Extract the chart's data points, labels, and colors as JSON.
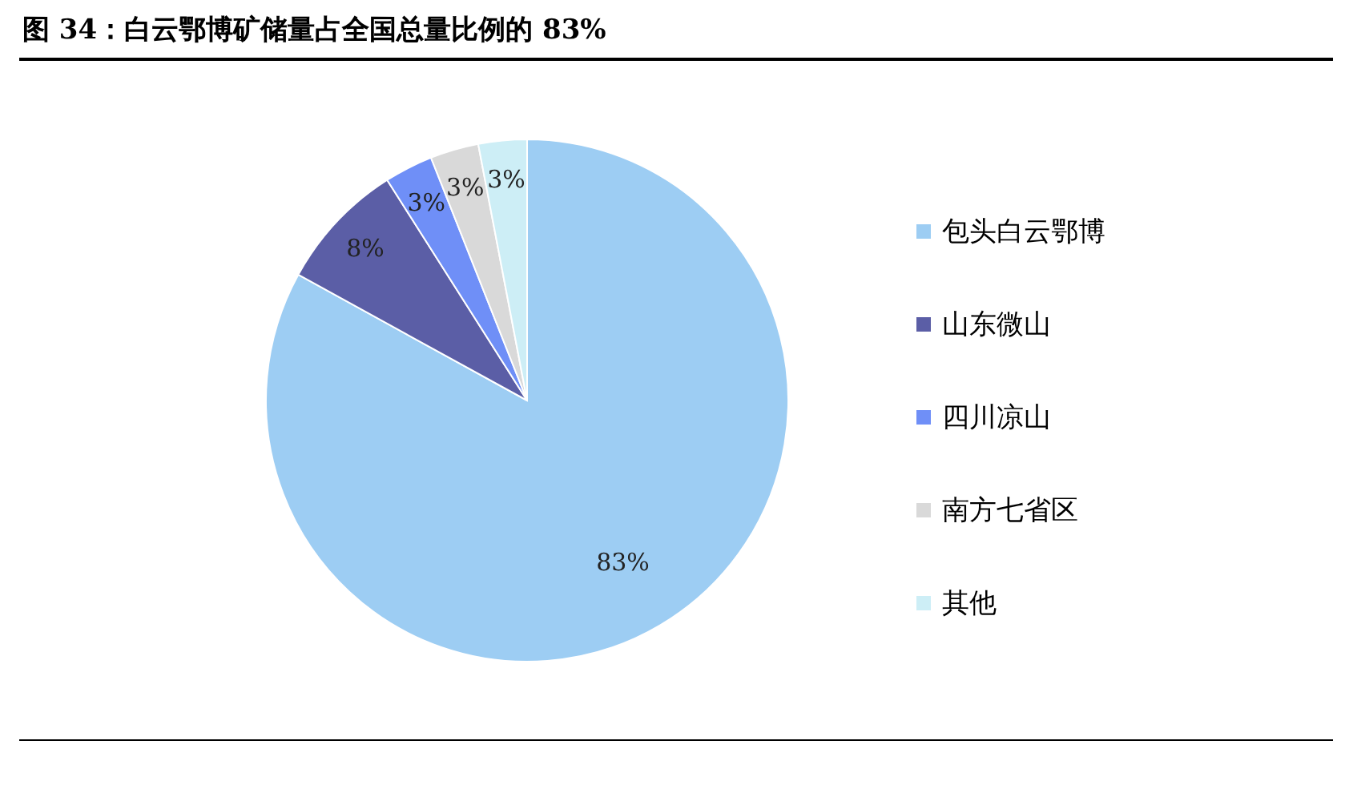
{
  "chart_data": {
    "type": "pie",
    "title": "图 34：白云鄂博矿储量占全国总量比例的 83%",
    "categories": [
      "包头白云鄂博",
      "山东微山",
      "四川凉山",
      "南方七省区",
      "其他"
    ],
    "values": [
      83,
      8,
      3,
      3,
      3
    ],
    "colors": [
      "#9dcdf3",
      "#5b5ea6",
      "#6f8ff7",
      "#d9d9d9",
      "#cdeef6"
    ],
    "value_labels": [
      "83%",
      "8%",
      "3%",
      "3%",
      "3%"
    ],
    "legend": "right"
  }
}
